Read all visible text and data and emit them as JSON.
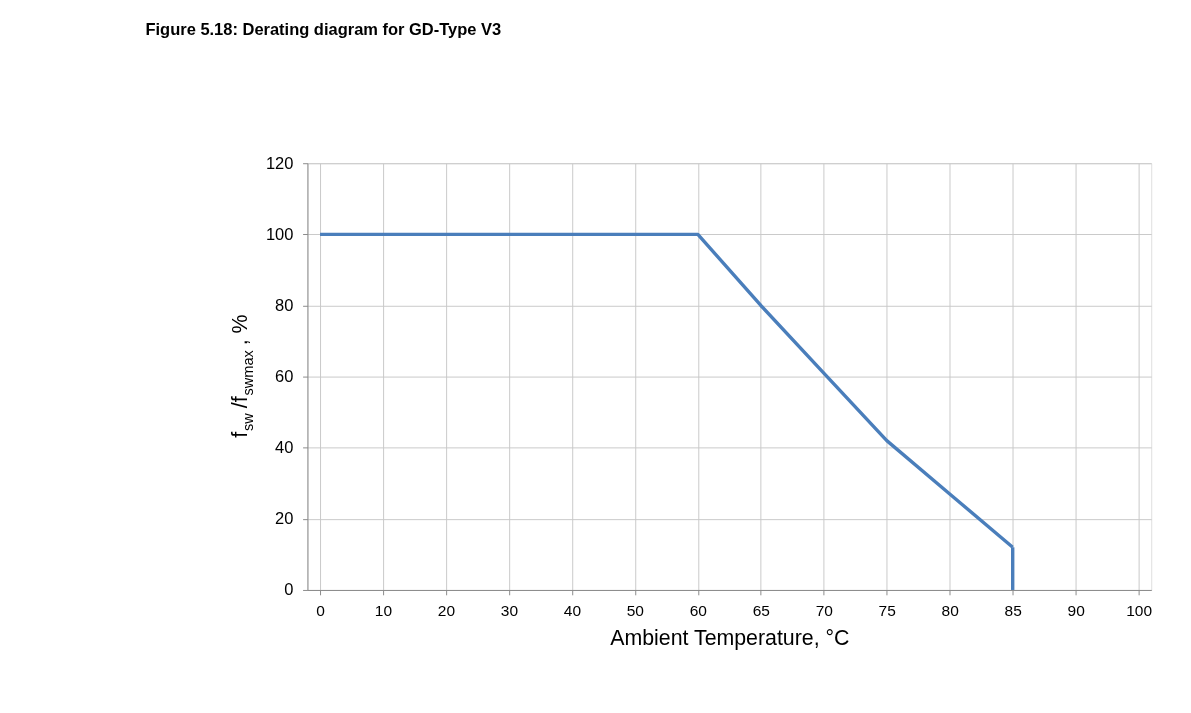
{
  "chart_data": {
    "type": "line",
    "title": "Figure 5.18: Derating diagram for GD-Type V3",
    "xlabel": "Ambient Temperature, °C",
    "ylabel": "f$_{sw}$/f$_{swmax}$ , %",
    "categories": [
      "0",
      "10",
      "20",
      "30",
      "40",
      "50",
      "60",
      "65",
      "70",
      "75",
      "80",
      "85",
      "90",
      "100"
    ],
    "series": [
      {
        "color": "#4a7ebb",
        "values": [
          100,
          100,
          100,
          100,
          100,
          100,
          100,
          80,
          61,
          42,
          27,
          12,
          null,
          null
        ]
      },
      {
        "color": "#4a7ebb",
        "x": [
          "85",
          "85"
        ],
        "values": [
          12,
          0
        ]
      }
    ],
    "ylim": [
      0,
      120
    ],
    "yticks": [
      0,
      20,
      40,
      60,
      80,
      100,
      120
    ],
    "grid": true
  }
}
